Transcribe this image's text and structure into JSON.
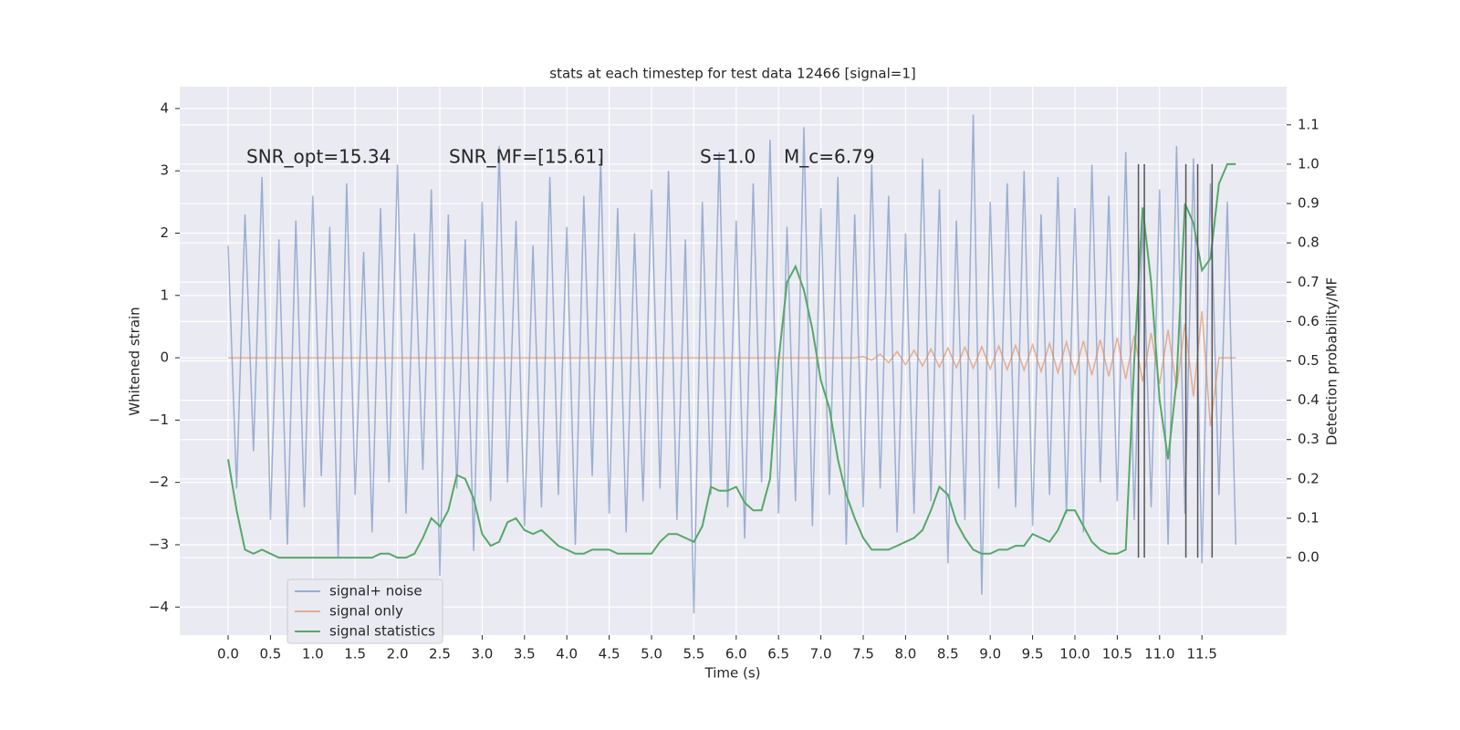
{
  "chart_data": {
    "type": "line",
    "title": "stats at each timestep for test data 12466 [signal=1]",
    "xlabel": "Time (s)",
    "ylabel": "Whitened strain",
    "y2label": "Detection probability/MF",
    "annotations": [
      "SNR_opt=15.34",
      "SNR_MF=[15.61]",
      "S=1.0",
      "M_c=6.79"
    ],
    "x": [
      0.0,
      0.1,
      0.2,
      0.3,
      0.4,
      0.5,
      0.6,
      0.7,
      0.8,
      0.9,
      1.0,
      1.1,
      1.2,
      1.3,
      1.4,
      1.5,
      1.6,
      1.7,
      1.8,
      1.9,
      2.0,
      2.1,
      2.2,
      2.3,
      2.4,
      2.5,
      2.6,
      2.7,
      2.8,
      2.9,
      3.0,
      3.1,
      3.2,
      3.3,
      3.4,
      3.5,
      3.6,
      3.7,
      3.8,
      3.9,
      4.0,
      4.1,
      4.2,
      4.3,
      4.4,
      4.5,
      4.6,
      4.7,
      4.8,
      4.9,
      5.0,
      5.1,
      5.2,
      5.3,
      5.4,
      5.5,
      5.6,
      5.7,
      5.8,
      5.9,
      6.0,
      6.1,
      6.2,
      6.3,
      6.4,
      6.5,
      6.6,
      6.7,
      6.8,
      6.9,
      7.0,
      7.1,
      7.2,
      7.3,
      7.4,
      7.5,
      7.6,
      7.7,
      7.8,
      7.9,
      8.0,
      8.1,
      8.2,
      8.3,
      8.4,
      8.5,
      8.6,
      8.7,
      8.8,
      8.9,
      9.0,
      9.1,
      9.2,
      9.3,
      9.4,
      9.5,
      9.6,
      9.7,
      9.8,
      9.9,
      10.0,
      10.1,
      10.2,
      10.3,
      10.4,
      10.5,
      10.6,
      10.7,
      10.8,
      10.9,
      11.0,
      11.1,
      11.2,
      11.3,
      11.4,
      11.5,
      11.6,
      11.7,
      11.8,
      11.9
    ],
    "series": [
      {
        "name": "signal+ noise",
        "color": "#4c72b0",
        "opacity": 0.5,
        "values": [
          1.8,
          -2.1,
          2.3,
          -1.5,
          2.9,
          -2.6,
          1.9,
          -3.0,
          2.2,
          -2.4,
          2.6,
          -1.9,
          2.1,
          -3.2,
          2.8,
          -2.2,
          1.7,
          -2.8,
          2.4,
          -2.0,
          3.1,
          -2.5,
          2.0,
          -1.8,
          2.7,
          -3.5,
          2.3,
          -2.1,
          1.9,
          -3.1,
          2.5,
          -2.3,
          3.4,
          -2.0,
          2.2,
          -2.7,
          1.8,
          -2.4,
          2.9,
          -2.2,
          2.1,
          -3.0,
          2.6,
          -1.9,
          3.2,
          -2.5,
          2.4,
          -2.8,
          2.0,
          -2.3,
          2.7,
          -2.1,
          3.0,
          -2.6,
          1.9,
          -4.1,
          2.5,
          -2.2,
          3.3,
          -2.4,
          2.2,
          -2.9,
          2.8,
          -2.0,
          3.5,
          -2.5,
          2.1,
          -2.3,
          3.7,
          -2.7,
          2.4,
          -2.2,
          2.9,
          -3.0,
          2.3,
          -2.4,
          3.1,
          -2.1,
          2.6,
          -2.8,
          2.0,
          -2.5,
          3.2,
          -2.3,
          2.7,
          -3.3,
          2.2,
          -2.6,
          3.9,
          -3.8,
          2.5,
          -2.1,
          2.8,
          -2.4,
          3.0,
          -2.7,
          2.3,
          -2.2,
          2.9,
          -2.5,
          2.4,
          -2.8,
          3.1,
          -2.0,
          2.6,
          -2.3,
          3.3,
          -2.6,
          2.2,
          -2.4,
          2.7,
          -3.0,
          3.4,
          -2.5,
          3.2,
          -3.3,
          2.8,
          -2.2,
          2.5,
          -3.0
        ]
      },
      {
        "name": "signal only",
        "color": "#dd8452",
        "opacity": 0.6,
        "x": [
          0.0,
          7.4,
          7.5,
          7.6,
          7.7,
          7.8,
          7.9,
          8.0,
          8.1,
          8.2,
          8.3,
          8.4,
          8.5,
          8.6,
          8.7,
          8.8,
          8.9,
          9.0,
          9.1,
          9.2,
          9.3,
          9.4,
          9.5,
          9.6,
          9.7,
          9.8,
          9.9,
          10.0,
          10.1,
          10.2,
          10.3,
          10.4,
          10.5,
          10.6,
          10.7,
          10.8,
          10.9,
          11.0,
          11.1,
          11.2,
          11.3,
          11.4,
          11.5,
          11.6,
          11.7,
          11.8,
          11.9
        ],
        "values": [
          0,
          0,
          0.02,
          -0.04,
          0.06,
          -0.08,
          0.1,
          -0.11,
          0.12,
          -0.13,
          0.14,
          -0.15,
          0.16,
          -0.16,
          0.17,
          -0.17,
          0.18,
          -0.18,
          0.19,
          -0.19,
          0.2,
          -0.2,
          0.21,
          -0.22,
          0.23,
          -0.24,
          0.25,
          -0.26,
          0.27,
          -0.28,
          0.29,
          -0.3,
          0.32,
          -0.34,
          0.36,
          -0.38,
          0.4,
          -0.42,
          0.45,
          -0.5,
          0.55,
          -0.62,
          0.75,
          -1.1,
          0,
          0,
          0
        ]
      },
      {
        "name": "signal statistics",
        "color": "#55a868",
        "axis": "y2",
        "values": [
          0.25,
          0.12,
          0.02,
          0.01,
          0.02,
          0.01,
          0.0,
          0.0,
          0.0,
          0.0,
          0.0,
          0.0,
          0.0,
          0.0,
          0.0,
          0.0,
          0.0,
          0.0,
          0.01,
          0.01,
          0.0,
          0.0,
          0.01,
          0.05,
          0.1,
          0.08,
          0.12,
          0.21,
          0.2,
          0.15,
          0.06,
          0.03,
          0.04,
          0.09,
          0.1,
          0.07,
          0.06,
          0.07,
          0.05,
          0.03,
          0.02,
          0.01,
          0.01,
          0.02,
          0.02,
          0.02,
          0.01,
          0.01,
          0.01,
          0.01,
          0.01,
          0.04,
          0.06,
          0.06,
          0.05,
          0.04,
          0.08,
          0.18,
          0.17,
          0.17,
          0.18,
          0.14,
          0.12,
          0.12,
          0.2,
          0.5,
          0.7,
          0.74,
          0.68,
          0.58,
          0.45,
          0.38,
          0.25,
          0.16,
          0.1,
          0.05,
          0.02,
          0.02,
          0.02,
          0.03,
          0.04,
          0.05,
          0.07,
          0.12,
          0.18,
          0.16,
          0.09,
          0.05,
          0.02,
          0.01,
          0.01,
          0.02,
          0.02,
          0.03,
          0.03,
          0.06,
          0.05,
          0.04,
          0.07,
          0.12,
          0.12,
          0.08,
          0.04,
          0.02,
          0.01,
          0.01,
          0.02,
          0.5,
          0.89,
          0.7,
          0.4,
          0.25,
          0.45,
          0.9,
          0.85,
          0.73,
          0.76,
          0.95,
          1.0,
          1.0
        ]
      }
    ],
    "vlines": [
      10.75,
      10.82,
      11.31,
      11.45,
      11.62
    ],
    "vline_color": "#555555",
    "xlim": [
      -0.571,
      12.5
    ],
    "ylim": [
      -4.45,
      4.35
    ],
    "y2lim": [
      -0.197,
      1.197
    ],
    "xticks": [
      {
        "value": 0,
        "label": "0.0"
      },
      0.5,
      {
        "value": 1,
        "label": "1.0"
      },
      1.5,
      {
        "value": 2,
        "label": "2.0"
      },
      2.5,
      {
        "value": 3,
        "label": "3.0"
      },
      3.5,
      {
        "value": 4,
        "label": "4.0"
      },
      4.5,
      {
        "value": 5,
        "label": "5.0"
      },
      5.5,
      {
        "value": 6,
        "label": "6.0"
      },
      6.5,
      {
        "value": 7,
        "label": "7.0"
      },
      7.5,
      {
        "value": 8,
        "label": "8.0"
      },
      8.5,
      {
        "value": 9,
        "label": "9.0"
      },
      9.5,
      {
        "value": 10,
        "label": "10.0"
      },
      10.5,
      {
        "value": 11,
        "label": "11.0"
      },
      11.5
    ],
    "yticks": [
      {
        "value": -4,
        "label": "−4"
      },
      {
        "value": -3,
        "label": "−3"
      },
      {
        "value": -2,
        "label": "−2"
      },
      {
        "value": -1,
        "label": "−1"
      },
      0,
      1,
      2,
      3,
      4
    ],
    "y2ticks": [
      {
        "value": 0,
        "label": "0.0"
      },
      0.1,
      0.2,
      0.3,
      0.4,
      0.5,
      0.6,
      0.7,
      0.8,
      0.9,
      {
        "value": 1,
        "label": "1.0"
      },
      1.1
    ],
    "grid": true,
    "legend": "lower left"
  }
}
